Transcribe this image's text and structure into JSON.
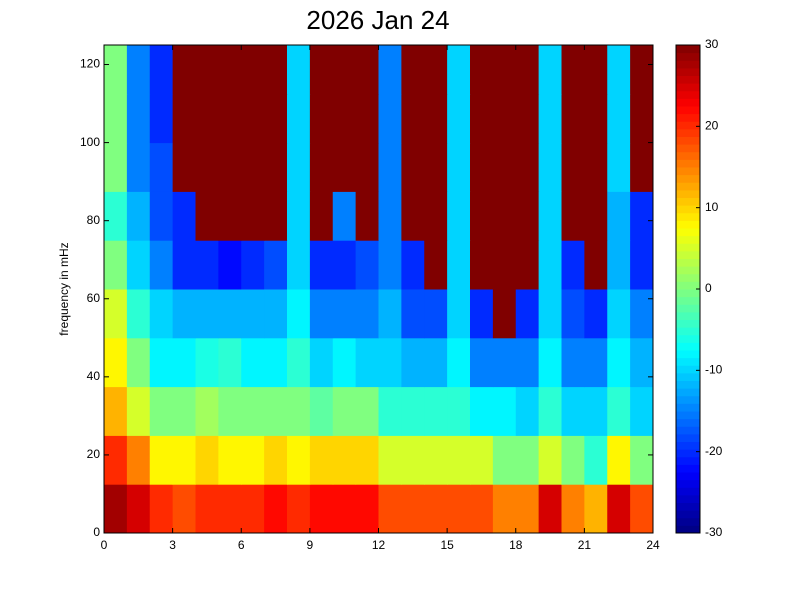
{
  "chart_data": {
    "type": "heatmap",
    "title": "2026 Jan 24",
    "y_label": "frequency in mHz",
    "colormap": "jet",
    "xlim": [
      0,
      24
    ],
    "xticks": [
      0,
      3,
      6,
      9,
      12,
      15,
      18,
      21,
      24
    ],
    "ylim": [
      0,
      125
    ],
    "yticks": [
      0,
      20,
      40,
      60,
      80,
      100,
      120
    ],
    "clim": [
      -30,
      30
    ],
    "cticks": [
      -30,
      -20,
      -10,
      0,
      10,
      20,
      30
    ],
    "x_bins": [
      0,
      1,
      2,
      3,
      4,
      5,
      6,
      7,
      8,
      9,
      10,
      11,
      12,
      13,
      14,
      15,
      16,
      17,
      18,
      19,
      20,
      21,
      22,
      23,
      24
    ],
    "y_bins": [
      0,
      12.5,
      25,
      37.5,
      50,
      62.5,
      75,
      87.5,
      100,
      112.5,
      125
    ],
    "values": [
      [
        28,
        25,
        20,
        18,
        20,
        20,
        20,
        22,
        20,
        22,
        22,
        22,
        18,
        18,
        18,
        18,
        18,
        15,
        15,
        25,
        15,
        12,
        25,
        18
      ],
      [
        20,
        15,
        8,
        8,
        10,
        8,
        8,
        10,
        8,
        10,
        10,
        10,
        5,
        5,
        5,
        5,
        5,
        0,
        0,
        5,
        0,
        -5,
        8,
        0
      ],
      [
        12,
        5,
        0,
        0,
        2,
        0,
        0,
        0,
        0,
        -2,
        0,
        0,
        -5,
        -5,
        -5,
        -5,
        -8,
        -8,
        -10,
        -5,
        -10,
        -10,
        -5,
        -10
      ],
      [
        8,
        0,
        -8,
        -8,
        -6,
        -5,
        -8,
        -8,
        -5,
        -10,
        -8,
        -10,
        -10,
        -12,
        -12,
        -8,
        -15,
        -15,
        -15,
        -8,
        -15,
        -15,
        -8,
        -12
      ],
      [
        5,
        -5,
        -10,
        -12,
        -12,
        -12,
        -12,
        -12,
        -8,
        -15,
        -15,
        -15,
        -12,
        -18,
        -18,
        -10,
        -20,
        30,
        -20,
        -10,
        -18,
        -20,
        -10,
        -15
      ],
      [
        0,
        -10,
        -15,
        -20,
        -20,
        -22,
        -20,
        -18,
        -10,
        -20,
        -20,
        -18,
        -15,
        -20,
        30,
        -10,
        30,
        30,
        30,
        -10,
        -20,
        30,
        -12,
        -20
      ],
      [
        -5,
        -12,
        -18,
        -20,
        30,
        30,
        30,
        30,
        -10,
        30,
        -15,
        30,
        -15,
        30,
        30,
        -10,
        30,
        30,
        30,
        -10,
        30,
        30,
        -12,
        -20
      ],
      [
        0,
        -15,
        -18,
        30,
        30,
        30,
        30,
        30,
        -10,
        30,
        30,
        30,
        -15,
        30,
        30,
        -10,
        30,
        30,
        30,
        -10,
        30,
        30,
        -10,
        30
      ],
      [
        0,
        -15,
        -20,
        30,
        30,
        30,
        30,
        30,
        -10,
        30,
        30,
        30,
        -15,
        30,
        30,
        -10,
        30,
        30,
        30,
        -10,
        30,
        30,
        -10,
        30
      ],
      [
        0,
        -15,
        -20,
        30,
        30,
        30,
        30,
        30,
        -10,
        30,
        30,
        30,
        -15,
        30,
        30,
        -10,
        30,
        30,
        30,
        -10,
        30,
        30,
        -10,
        30
      ]
    ]
  }
}
